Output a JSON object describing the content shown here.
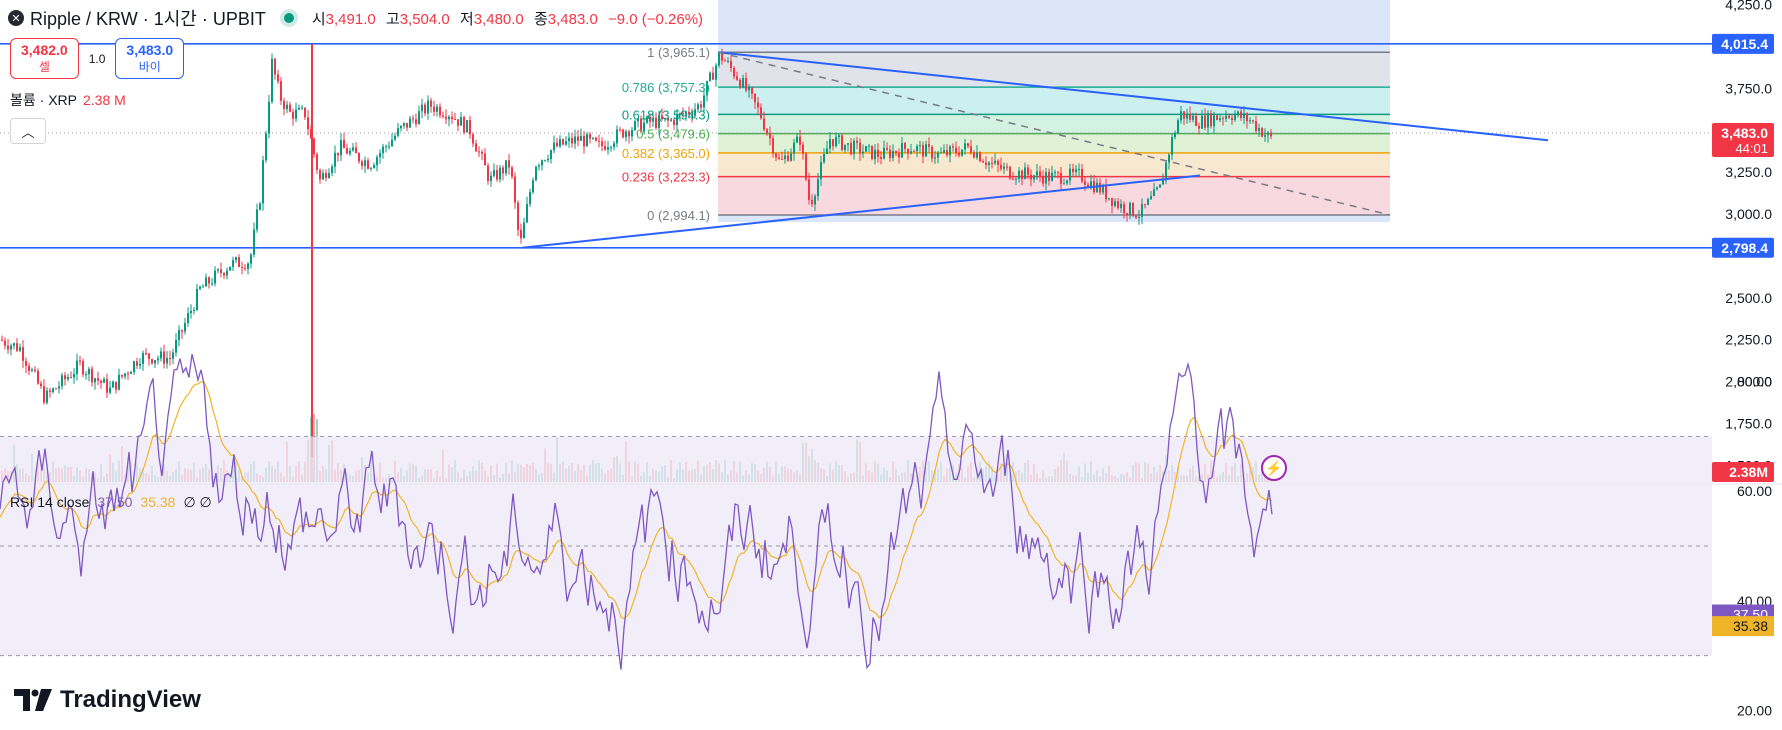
{
  "header": {
    "symbol_icon": "xrp-icon",
    "title": "Ripple / KRW · 1시간 · UPBIT",
    "open_label": "시",
    "open_value": "3,491.0",
    "high_label": "고",
    "high_value": "3,504.0",
    "low_label": "저",
    "low_value": "3,480.0",
    "close_label": "종",
    "close_value": "3,483.0",
    "change": "−9.0 (−0.26%)"
  },
  "trade": {
    "sell_price": "3,482.0",
    "sell_label": "셀",
    "spread": "1.0",
    "buy_price": "3,483.0",
    "buy_label": "바이"
  },
  "volume_legend": {
    "label": "볼륨 · XRP",
    "value": "2.38 M"
  },
  "rsi_legend": {
    "label": "RSI 14 close",
    "rsi": "37.50",
    "ma": "35.38",
    "extra": "∅ ∅"
  },
  "logo": "TradingView",
  "colors": {
    "up": "#089981",
    "down": "#f23645",
    "trend": "#2962ff",
    "rsi": "#7e57c2",
    "rsi_ma": "#f0b429",
    "volume_up": "#9bd3c7",
    "volume_down": "#f7a9a8"
  },
  "chart_data": [
    {
      "type": "candlestick",
      "title": "Ripple / KRW · 1시간 · UPBIT",
      "y_axis_ticks": [
        "4,250.0",
        "3,750.0",
        "3,500.0",
        "3,250.0",
        "3,000.0",
        "2,500.0",
        "2,250.0",
        "2,000.0",
        "1,750.0",
        "1,500.0"
      ],
      "ylim": [
        1500,
        4250
      ],
      "price_path": [
        [
          0,
          2250
        ],
        [
          20,
          2200
        ],
        [
          45,
          1900
        ],
        [
          80,
          2100
        ],
        [
          110,
          1950
        ],
        [
          140,
          2150
        ],
        [
          170,
          2140
        ],
        [
          200,
          2550
        ],
        [
          230,
          2700
        ],
        [
          250,
          2720
        ],
        [
          260,
          3100
        ],
        [
          272,
          3900
        ],
        [
          280,
          3700
        ],
        [
          290,
          3600
        ],
        [
          305,
          3600
        ],
        [
          320,
          3200
        ],
        [
          340,
          3400
        ],
        [
          370,
          3300
        ],
        [
          400,
          3500
        ],
        [
          430,
          3650
        ],
        [
          450,
          3600
        ],
        [
          470,
          3500
        ],
        [
          490,
          3200
        ],
        [
          510,
          3300
        ],
        [
          520,
          2800
        ],
        [
          535,
          3300
        ],
        [
          555,
          3400
        ],
        [
          580,
          3450
        ],
        [
          600,
          3400
        ],
        [
          625,
          3500
        ],
        [
          650,
          3550
        ],
        [
          670,
          3550
        ],
        [
          700,
          3650
        ],
        [
          720,
          3950
        ],
        [
          740,
          3800
        ],
        [
          760,
          3600
        ],
        [
          780,
          3300
        ],
        [
          800,
          3450
        ],
        [
          810,
          3050
        ],
        [
          830,
          3450
        ],
        [
          850,
          3400
        ],
        [
          880,
          3350
        ],
        [
          910,
          3400
        ],
        [
          940,
          3350
        ],
        [
          970,
          3400
        ],
        [
          990,
          3300
        ],
        [
          1010,
          3250
        ],
        [
          1050,
          3220
        ],
        [
          1080,
          3230
        ],
        [
          1100,
          3150
        ],
        [
          1120,
          3050
        ],
        [
          1140,
          3000
        ],
        [
          1160,
          3150
        ],
        [
          1170,
          3400
        ],
        [
          1180,
          3600
        ],
        [
          1200,
          3550
        ],
        [
          1230,
          3600
        ],
        [
          1250,
          3560
        ],
        [
          1270,
          3450
        ]
      ],
      "spike": {
        "x": 312,
        "high": 4015.4,
        "low": 1550
      },
      "price_labels": [
        {
          "value": "4,015.4",
          "color": "#2962ff"
        },
        {
          "value": "3,483.0",
          "sub": "44:01",
          "color": "#f23645"
        },
        {
          "value": "2,798.4",
          "color": "#2962ff"
        },
        {
          "value": "2.38M",
          "color": "#f23645"
        }
      ],
      "horizontal_lines": [
        4015.4,
        2798.4
      ],
      "fibonacci": [
        {
          "label": "1 (3,965.1)",
          "value": 3965.1,
          "color": "#787b86"
        },
        {
          "label": "0.786 (3,757.3)",
          "value": 3757.3,
          "color": "#22ab94"
        },
        {
          "label": "0.618 (3,594.3)",
          "value": 3594.3,
          "color": "#089981"
        },
        {
          "label": "0.5 (3,479.6)",
          "value": 3479.6,
          "color": "#4caf50"
        },
        {
          "label": "0.382 (3,365.0)",
          "value": 3365.0,
          "color": "#f0a30a"
        },
        {
          "label": "0.236 (3,223.3)",
          "value": 3223.3,
          "color": "#f23645"
        },
        {
          "label": "0 (2,994.1)",
          "value": 2994.1,
          "color": "#787b86"
        }
      ],
      "trendlines": [
        {
          "from": [
            718,
            3965.1
          ],
          "to": [
            1548,
            3440
          ]
        },
        {
          "from": [
            522,
            2798.4
          ],
          "to": [
            1200,
            3230
          ]
        },
        {
          "from": [
            718,
            3965.1
          ],
          "to": [
            1390,
            2994.1
          ],
          "dashed": true
        }
      ]
    },
    {
      "type": "line",
      "title": "RSI 14 close",
      "y_axis_ticks": [
        "80.00",
        "60.00",
        "40.00",
        "20.00"
      ],
      "ylim": [
        15,
        90
      ],
      "bands": {
        "upper": 70,
        "middle": 50,
        "lower": 30
      },
      "last_values": [
        {
          "value": "37.50",
          "color": "#7e57c2"
        },
        {
          "value": "35.38",
          "color": "#f0b429"
        }
      ]
    }
  ]
}
